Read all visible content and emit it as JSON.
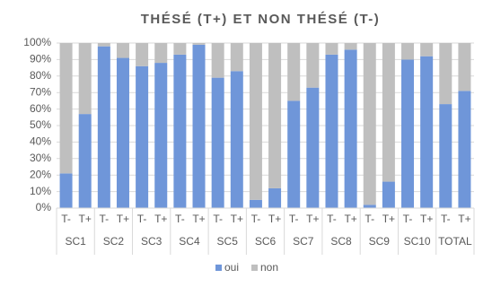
{
  "chart_data": {
    "type": "stacked_bar_100",
    "title": "THÉSÉ (T+) ET NON THÉSÉ (T-)",
    "groups": [
      "SC1",
      "SC2",
      "SC3",
      "SC4",
      "SC5",
      "SC6",
      "SC7",
      "SC8",
      "SC9",
      "SC10",
      "TOTAL"
    ],
    "categories": [
      "T-",
      "T+",
      "T-",
      "T+",
      "T-",
      "T+",
      "T-",
      "T+",
      "T-",
      "T+",
      "T-",
      "T+",
      "T-",
      "T+",
      "T-",
      "T+",
      "T-",
      "T+",
      "T-",
      "T+",
      "T-",
      "T+"
    ],
    "series": [
      {
        "name": "oui",
        "color": "#6f96d9",
        "values": [
          21,
          57,
          98,
          91,
          86,
          88,
          93,
          99,
          79,
          83,
          5,
          12,
          65,
          73,
          93,
          96,
          2,
          16,
          90,
          92,
          63,
          71
        ]
      },
      {
        "name": "non",
        "color": "#bfbfbf",
        "values": [
          79,
          43,
          2,
          9,
          14,
          12,
          7,
          1,
          21,
          17,
          95,
          88,
          35,
          27,
          7,
          4,
          98,
          84,
          10,
          8,
          37,
          29
        ]
      }
    ],
    "ylim": [
      0,
      100
    ],
    "yticks": [
      {
        "value": 0,
        "label": "0%"
      },
      {
        "value": 10,
        "label": "10%"
      },
      {
        "value": 20,
        "label": "20%"
      },
      {
        "value": 30,
        "label": "30%"
      },
      {
        "value": 40,
        "label": "40%"
      },
      {
        "value": 50,
        "label": "50%"
      },
      {
        "value": 60,
        "label": "60%"
      },
      {
        "value": 70,
        "label": "70%"
      },
      {
        "value": 80,
        "label": "80%"
      },
      {
        "value": 90,
        "label": "90%"
      },
      {
        "value": 100,
        "label": "100%"
      }
    ],
    "grid": true,
    "legend": "bottom"
  }
}
